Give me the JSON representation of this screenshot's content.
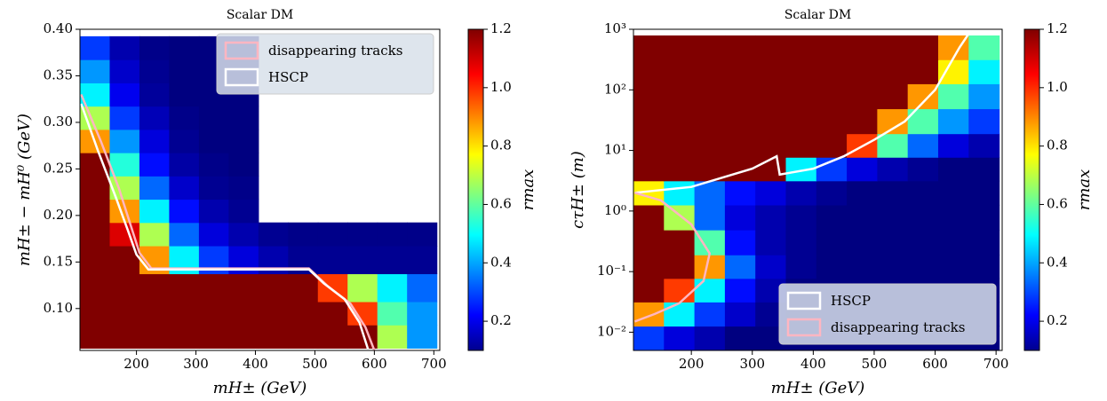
{
  "chart_data": [
    {
      "type": "heatmap",
      "title": "Scalar DM",
      "xlabel": "mH± (GeV)",
      "ylabel": "mH± − mH⁰ (GeV)",
      "yscale": "linear",
      "x": [
        130,
        180,
        230,
        280,
        330,
        380,
        430,
        480,
        530,
        580,
        630,
        680
      ],
      "y": [
        0.07,
        0.095,
        0.12,
        0.155,
        0.18,
        0.205,
        0.23,
        0.255,
        0.28,
        0.305,
        0.33,
        0.355,
        0.38
      ],
      "values": [
        [
          1.2,
          1.2,
          1.2,
          1.2,
          1.2,
          1.2,
          1.2,
          1.2,
          1.2,
          1.2,
          0.7,
          0.4
        ],
        [
          1.2,
          1.2,
          1.2,
          1.2,
          1.2,
          1.2,
          1.2,
          1.2,
          1.2,
          1.0,
          0.6,
          0.4
        ],
        [
          1.2,
          1.2,
          1.2,
          1.2,
          1.2,
          1.2,
          1.2,
          1.2,
          1.0,
          0.7,
          0.5,
          0.35
        ],
        [
          1.2,
          1.2,
          0.9,
          0.5,
          0.3,
          0.2,
          0.15,
          0.12,
          0.12,
          0.12,
          0.12,
          0.12
        ],
        [
          1.2,
          1.1,
          0.7,
          0.35,
          0.2,
          0.15,
          0.12,
          0.11,
          0.11,
          0.11,
          0.11,
          0.11
        ],
        [
          1.2,
          0.9,
          0.5,
          0.25,
          0.15,
          0.12,
          null,
          null,
          null,
          null,
          null,
          null
        ],
        [
          1.2,
          0.7,
          0.35,
          0.18,
          0.12,
          0.11,
          null,
          null,
          null,
          null,
          null,
          null
        ],
        [
          1.2,
          0.55,
          0.25,
          0.14,
          0.11,
          0.1,
          null,
          null,
          null,
          null,
          null,
          null
        ],
        [
          0.9,
          0.4,
          0.2,
          0.12,
          0.1,
          0.1,
          null,
          null,
          null,
          null,
          null,
          null
        ],
        [
          0.7,
          0.3,
          0.16,
          0.11,
          0.1,
          0.1,
          null,
          null,
          null,
          null,
          null,
          null
        ],
        [
          0.5,
          0.22,
          0.13,
          0.1,
          0.1,
          0.1,
          null,
          null,
          null,
          null,
          null,
          null
        ],
        [
          0.4,
          0.18,
          0.12,
          0.1,
          0.1,
          0.1,
          null,
          null,
          null,
          null,
          null,
          null
        ],
        [
          0.3,
          0.15,
          0.11,
          0.1,
          0.1,
          0.1,
          null,
          null,
          null,
          null,
          null,
          null
        ]
      ],
      "xlim": [
        105,
        710
      ],
      "ylim": [
        0.055,
        0.4
      ],
      "xticks": [
        200,
        300,
        400,
        500,
        600,
        700
      ],
      "yticks": [
        {
          "value": 0.1,
          "label": "0.10"
        },
        0.15,
        {
          "value": 0.2,
          "label": "0.20"
        },
        0.25,
        {
          "value": 0.3,
          "label": "0.30"
        },
        0.35,
        {
          "value": 0.4,
          "label": "0.40"
        }
      ],
      "colorbar": {
        "label": "rmax",
        "colormap": "jet",
        "lim": [
          0.1,
          1.2
        ],
        "ticks": [
          0.2,
          0.4,
          0.6,
          0.8,
          {
            "value": 1.0,
            "label": "1.0"
          },
          1.2
        ]
      },
      "legend": "upper right",
      "series": [
        {
          "name": "disappearing tracks",
          "color": "#ffb6c1",
          "x": [
            107,
            140,
            170,
            190,
            205,
            225,
            490,
            520,
            560,
            585,
            600
          ],
          "y": [
            0.33,
            0.28,
            0.23,
            0.19,
            0.16,
            0.143,
            0.143,
            0.125,
            0.105,
            0.08,
            0.055
          ]
        },
        {
          "name": "HSCP",
          "color": "#ffffff",
          "x": [
            107,
            135,
            165,
            185,
            200,
            220,
            490,
            515,
            550,
            575,
            590
          ],
          "y": [
            0.32,
            0.27,
            0.22,
            0.185,
            0.158,
            0.142,
            0.142,
            0.127,
            0.11,
            0.085,
            0.055
          ]
        }
      ]
    },
    {
      "type": "heatmap",
      "title": "Scalar DM",
      "xlabel": "mH± (GeV)",
      "ylabel": "cτH± (m)",
      "yscale": "log",
      "x": [
        130,
        180,
        230,
        280,
        330,
        380,
        430,
        480,
        530,
        580,
        630,
        680
      ],
      "y": [
        0.008,
        0.02,
        0.05,
        0.12,
        0.3,
        0.8,
        2,
        5,
        12,
        30,
        80,
        200,
        500
      ],
      "values": [
        [
          0.3,
          0.2,
          0.15,
          0.1,
          0.1,
          0.1,
          0.1,
          0.1,
          0.1,
          0.1,
          0.1,
          0.1
        ],
        [
          0.9,
          0.5,
          0.3,
          0.18,
          0.12,
          0.1,
          0.1,
          0.1,
          0.1,
          0.1,
          0.1,
          0.1
        ],
        [
          1.2,
          1.0,
          0.5,
          0.25,
          0.15,
          0.1,
          0.1,
          0.1,
          0.1,
          0.1,
          0.1,
          0.1
        ],
        [
          1.2,
          1.2,
          0.9,
          0.35,
          0.18,
          0.12,
          0.1,
          0.1,
          0.1,
          0.1,
          0.1,
          0.1
        ],
        [
          1.2,
          1.2,
          0.6,
          0.25,
          0.15,
          0.12,
          0.1,
          0.1,
          0.1,
          0.1,
          0.1,
          0.1
        ],
        [
          1.2,
          0.7,
          0.35,
          0.2,
          0.15,
          0.12,
          0.1,
          0.1,
          0.1,
          0.1,
          0.1,
          0.1
        ],
        [
          0.8,
          0.5,
          0.35,
          0.25,
          0.2,
          0.15,
          0.12,
          0.1,
          0.1,
          0.1,
          0.1,
          0.1
        ],
        [
          1.2,
          1.2,
          1.2,
          1.2,
          1.2,
          0.5,
          0.3,
          0.2,
          0.15,
          0.12,
          0.1,
          0.1
        ],
        [
          1.2,
          1.2,
          1.2,
          1.2,
          1.2,
          1.2,
          1.2,
          1.0,
          0.6,
          0.35,
          0.2,
          0.15
        ],
        [
          1.2,
          1.2,
          1.2,
          1.2,
          1.2,
          1.2,
          1.2,
          1.2,
          0.9,
          0.6,
          0.4,
          0.3
        ],
        [
          1.2,
          1.2,
          1.2,
          1.2,
          1.2,
          1.2,
          1.2,
          1.2,
          1.2,
          0.9,
          0.6,
          0.4
        ],
        [
          1.2,
          1.2,
          1.2,
          1.2,
          1.2,
          1.2,
          1.2,
          1.2,
          1.2,
          1.2,
          0.8,
          0.5
        ],
        [
          1.2,
          1.2,
          1.2,
          1.2,
          1.2,
          1.2,
          1.2,
          1.2,
          1.2,
          1.2,
          0.9,
          0.6
        ]
      ],
      "xlim": [
        105,
        710
      ],
      "ylim": [
        0.005,
        1000
      ],
      "xticks": [
        200,
        300,
        400,
        500,
        600,
        700
      ],
      "yticks": [
        {
          "value": 0.01,
          "label": "10⁻²"
        },
        {
          "value": 0.1,
          "label": "10⁻¹"
        },
        {
          "value": 1,
          "label": "10⁰"
        },
        {
          "value": 10,
          "label": "10¹"
        },
        {
          "value": 100,
          "label": "10²"
        },
        {
          "value": 1000,
          "label": "10³"
        }
      ],
      "colorbar": {
        "label": "rmax",
        "colormap": "jet",
        "lim": [
          0.1,
          1.2
        ],
        "ticks": [
          0.2,
          0.4,
          0.6,
          0.8,
          {
            "value": 1.0,
            "label": "1.0"
          },
          1.2
        ]
      },
      "legend": "lower right",
      "series": [
        {
          "name": "HSCP",
          "color": "#ffffff",
          "x": [
            107,
            200,
            300,
            340,
            345,
            400,
            450,
            500,
            550,
            600,
            640,
            660
          ],
          "y": [
            2,
            2.5,
            5,
            8,
            4,
            5,
            8,
            15,
            30,
            100,
            500,
            1000
          ]
        },
        {
          "name": "disappearing tracks",
          "color": "#ffb6c1",
          "x": [
            107,
            150,
            200,
            230,
            220,
            180,
            140,
            107
          ],
          "y": [
            2,
            1.5,
            0.6,
            0.2,
            0.07,
            0.03,
            0.02,
            0.015
          ]
        }
      ]
    }
  ]
}
